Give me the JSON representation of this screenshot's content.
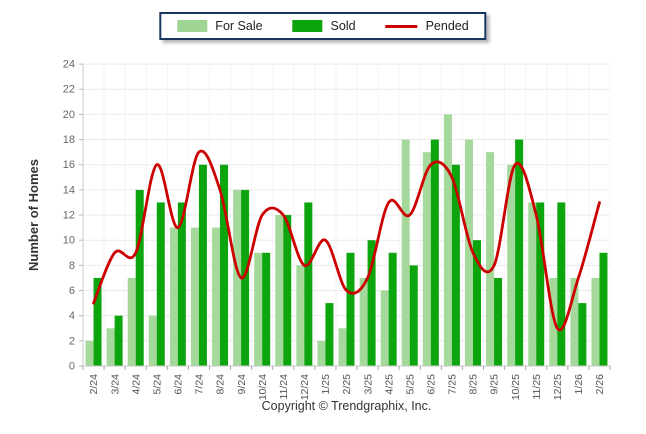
{
  "legend": {
    "items": [
      {
        "label": "For Sale",
        "marker": "swatch",
        "color": "#9fd593"
      },
      {
        "label": "Sold",
        "marker": "swatch",
        "color": "#0da50d"
      },
      {
        "label": "Pended",
        "marker": "line",
        "color": "#cc0000"
      }
    ],
    "border_color": "#17375e"
  },
  "footer": {
    "copyright": "Copyright © Trendgraphix, Inc."
  },
  "chart_data": {
    "type": "combo",
    "categories": [
      "2/24",
      "3/24",
      "4/24",
      "5/24",
      "6/24",
      "7/24",
      "8/24",
      "9/24",
      "10/24",
      "11/24",
      "12/24",
      "1/25",
      "2/25",
      "3/25",
      "4/25",
      "5/25",
      "6/25",
      "7/25",
      "8/25",
      "9/25",
      "10/25",
      "11/25",
      "12/25",
      "1/26",
      "2/26"
    ],
    "series": [
      {
        "name": "For Sale",
        "type": "bar",
        "color": "#a5d99c",
        "values": [
          2,
          3,
          7,
          4,
          11,
          11,
          11,
          14,
          9,
          12,
          8,
          2,
          3,
          7,
          6,
          18,
          17,
          20,
          18,
          17,
          16,
          13,
          7,
          7,
          7
        ]
      },
      {
        "name": "Sold",
        "type": "bar",
        "color": "#0da50d",
        "values": [
          7,
          4,
          14,
          13,
          13,
          16,
          16,
          14,
          9,
          12,
          13,
          5,
          9,
          10,
          9,
          8,
          18,
          16,
          10,
          7,
          18,
          13,
          13,
          5,
          9
        ]
      },
      {
        "name": "Pended",
        "type": "line",
        "color": "#cc0000",
        "values": [
          5,
          9,
          9,
          16,
          11,
          17,
          14,
          7,
          12,
          12,
          8,
          10,
          6,
          7,
          13,
          12,
          16,
          15,
          9,
          8,
          16,
          12,
          3,
          7,
          13
        ]
      }
    ],
    "title": "",
    "xlabel": "",
    "ylabel": "Number of Homes",
    "ylim": [
      0,
      24
    ],
    "ytick_step": 2,
    "grid": true,
    "legend_position": "top",
    "axis_color": "#c8c8c8",
    "gridline_color": "#ebebeb",
    "vgridline_color": "#f5f5f5",
    "tick_label_color": "#666666",
    "axis_title_color": "#333333"
  }
}
